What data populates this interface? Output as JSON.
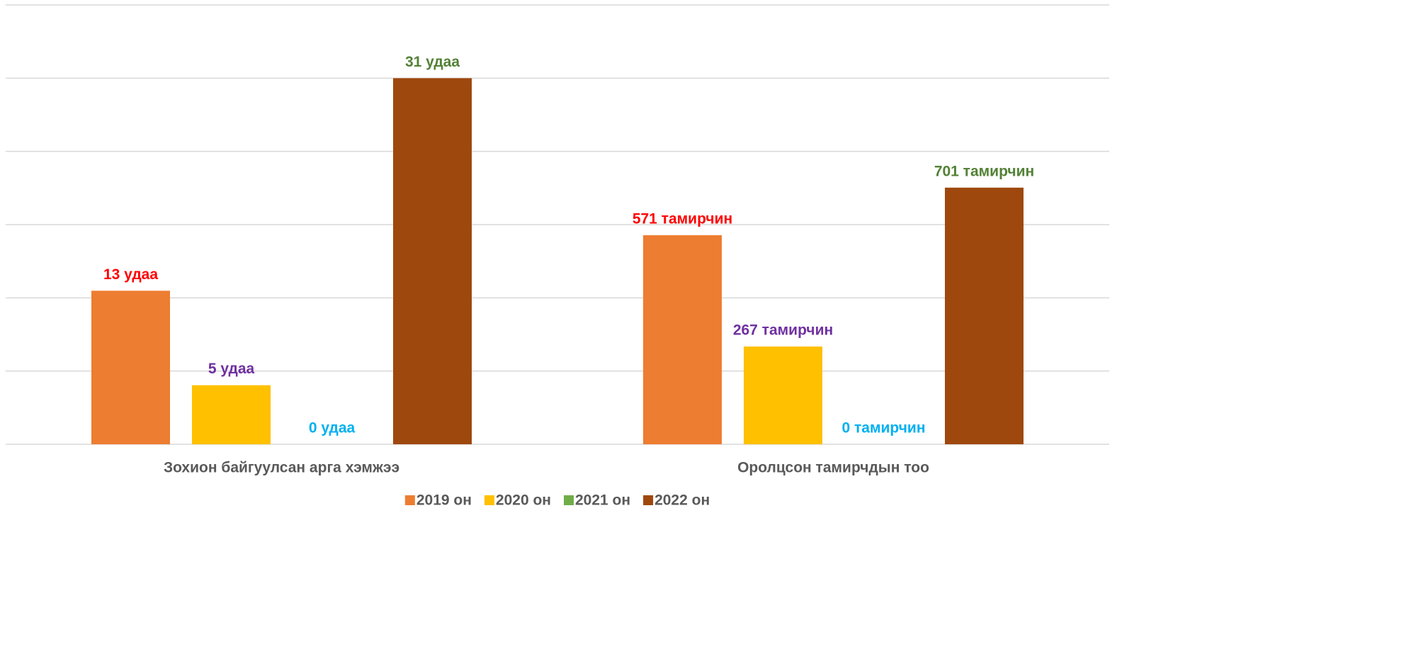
{
  "chart_data": {
    "type": "bar",
    "categories": [
      "Зохион байгуулсан арга хэмжээ",
      "Оролцсон тамирчдын тоо"
    ],
    "category_axes": [
      "y",
      "y2"
    ],
    "ylim": [
      0,
      37.2
    ],
    "y2lim": [
      0,
      1200
    ],
    "y2ticks": [
      0,
      200,
      400,
      600,
      800,
      1000,
      1200
    ],
    "grid": true,
    "legend": "bottom",
    "series": [
      {
        "name": "2019 он",
        "color": "#ed7d31",
        "label_color": "#ff0000",
        "values": [
          13,
          571
        ],
        "value_labels": [
          "13 удаа",
          "571 тамирчин"
        ]
      },
      {
        "name": "2020 он",
        "color": "#ffc000",
        "label_color": "#7030a0",
        "values": [
          5,
          267
        ],
        "value_labels": [
          "5 удаа",
          "267 тамирчин"
        ]
      },
      {
        "name": "2021 он",
        "color": "#70ad47",
        "label_color": "#00b0f0",
        "values": [
          0,
          0
        ],
        "value_labels": [
          "0 удаа",
          "0 тамирчин"
        ]
      },
      {
        "name": "2022 он",
        "color": "#9e480e",
        "label_color": "#538135",
        "values": [
          31,
          701
        ],
        "value_labels": [
          "31 удаа",
          "701 тамирчин"
        ]
      }
    ]
  }
}
